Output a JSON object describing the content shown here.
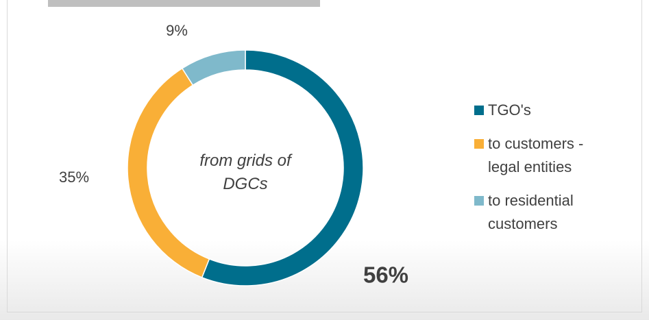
{
  "chart_data": {
    "type": "donut",
    "center_label": "from grids of DGCs",
    "categories": [
      "TGO's",
      "to customers - legal entities",
      "to residential customers"
    ],
    "values": [
      56,
      35,
      9
    ],
    "value_labels": [
      "56%",
      "35%",
      "9%"
    ],
    "colors": [
      "#006e8c",
      "#f9af37",
      "#7fb9cb"
    ],
    "legend": "right"
  }
}
